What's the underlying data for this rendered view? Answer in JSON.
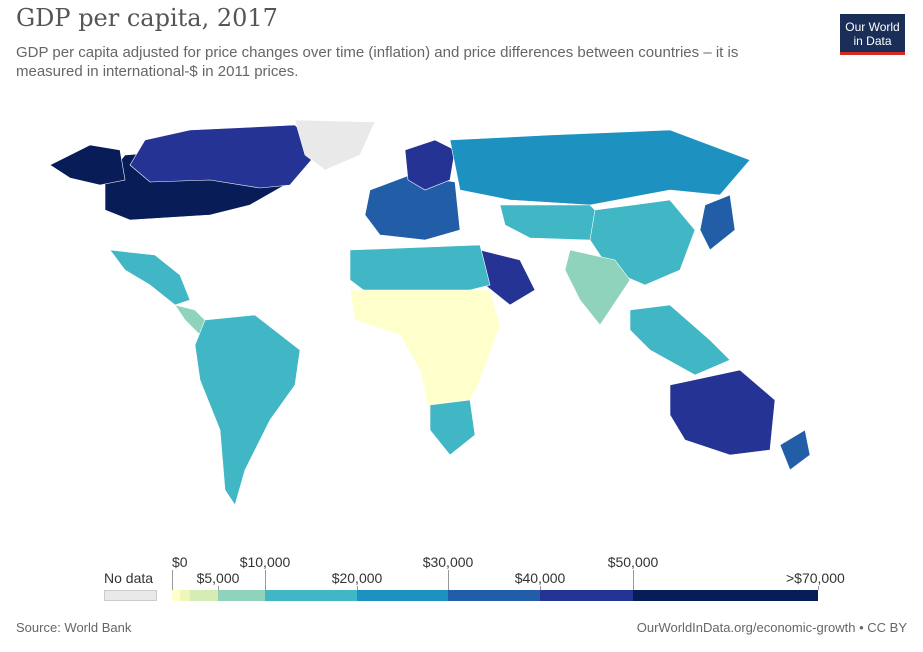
{
  "title": "GDP per capita, 2017",
  "subtitle": "GDP per capita adjusted for price changes over time (inflation) and price differences between countries – it is measured in international-$ in 2011 prices.",
  "logo": {
    "line1": "Our World",
    "line2": "in Data"
  },
  "legend": {
    "no_data_label": "No data",
    "upper_labels": [
      "$0",
      "$10,000",
      "$30,000",
      "$50,000"
    ],
    "lower_labels": [
      "$5,000",
      "$20,000",
      "$40,000",
      ">$70,000"
    ],
    "bins": [
      {
        "from": 0,
        "to": 1000,
        "color": "#ffffcc"
      },
      {
        "from": 1000,
        "to": 2000,
        "color": "#f0f5b8"
      },
      {
        "from": 2000,
        "to": 5000,
        "color": "#d5edb4"
      },
      {
        "from": 5000,
        "to": 10000,
        "color": "#8fd3bd"
      },
      {
        "from": 10000,
        "to": 20000,
        "color": "#41b6c4"
      },
      {
        "from": 20000,
        "to": 30000,
        "color": "#1d91c0"
      },
      {
        "from": 30000,
        "to": 40000,
        "color": "#225ea8"
      },
      {
        "from": 40000,
        "to": 50000,
        "color": "#253494"
      },
      {
        "from": 50000,
        "to": 70000,
        "color": "#081d58"
      }
    ],
    "no_data_color": "#e9e9e9"
  },
  "regions": [
    {
      "name": "North America high income",
      "color": "#081d58"
    },
    {
      "name": "Canada",
      "color": "#253494"
    },
    {
      "name": "Alaska",
      "color": "#081d58"
    },
    {
      "name": "Greenland",
      "color": "#e9e9e9"
    },
    {
      "name": "Mexico",
      "color": "#41b6c4"
    },
    {
      "name": "Central America",
      "color": "#8fd3bd"
    },
    {
      "name": "South America",
      "color": "#41b6c4"
    },
    {
      "name": "Western Europe",
      "color": "#225ea8"
    },
    {
      "name": "Scandinavia",
      "color": "#253494"
    },
    {
      "name": "Russia",
      "color": "#1d91c0"
    },
    {
      "name": "Kazakhstan / Central Asia",
      "color": "#41b6c4"
    },
    {
      "name": "China",
      "color": "#41b6c4"
    },
    {
      "name": "India",
      "color": "#8fd3bd"
    },
    {
      "name": "Japan",
      "color": "#225ea8"
    },
    {
      "name": "Middle East Gulf",
      "color": "#253494"
    },
    {
      "name": "North Africa",
      "color": "#41b6c4"
    },
    {
      "name": "Sub-Saharan Africa",
      "color": "#ffffcc"
    },
    {
      "name": "Southern Africa",
      "color": "#41b6c4"
    },
    {
      "name": "Southeast Asia",
      "color": "#41b6c4"
    },
    {
      "name": "Australia",
      "color": "#253494"
    },
    {
      "name": "New Zealand",
      "color": "#225ea8"
    }
  ],
  "footer": {
    "source": "Source: World Bank",
    "credit": "OurWorldInData.org/economic-growth • CC BY"
  }
}
